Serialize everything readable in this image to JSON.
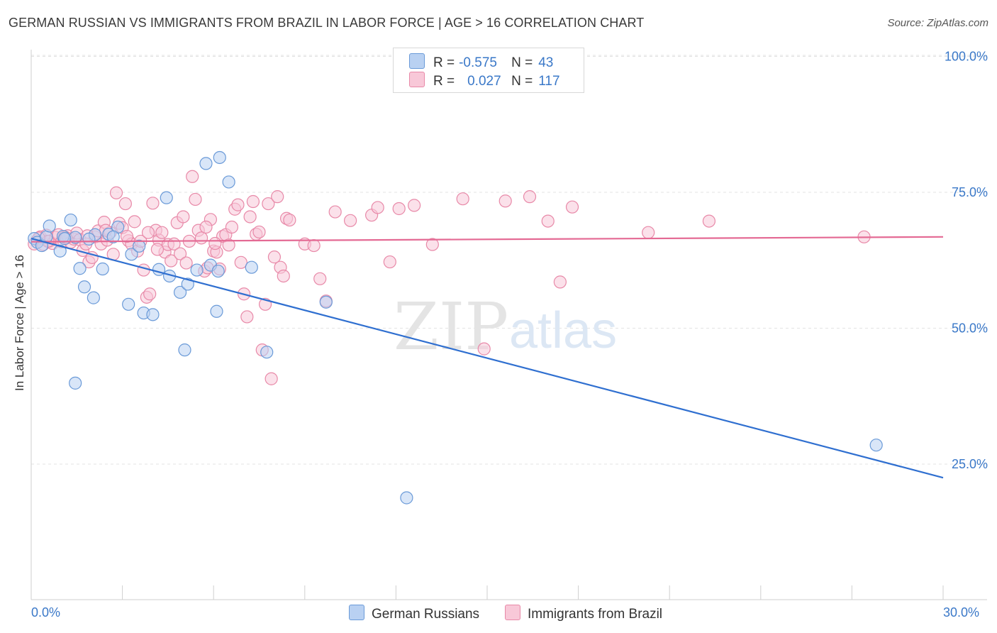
{
  "header": {
    "title": "GERMAN RUSSIAN VS IMMIGRANTS FROM BRAZIL IN LABOR FORCE | AGE > 16 CORRELATION CHART",
    "source_label": "Source: ZipAtlas.com"
  },
  "watermark": {
    "zip": "ZIP",
    "atlas": "atlas"
  },
  "legend_top": {
    "row1": {
      "r_label": "R =",
      "r_value": "-0.575",
      "n_label": "N =",
      "n_value": "43"
    },
    "row2": {
      "r_label": "R =",
      "r_value": "0.027",
      "n_label": "N =",
      "n_value": "117"
    }
  },
  "legend_bottom": {
    "series1": "German Russians",
    "series2": "Immigrants from Brazil"
  },
  "colors": {
    "blue_fill": "#b9d1f2",
    "blue_stroke": "#6a9ad8",
    "blue_line": "#2f6fd0",
    "pink_fill": "#f8c8d8",
    "pink_stroke": "#e889a8",
    "pink_line": "#e46a94",
    "axis_text": "#3a78c8",
    "grid": "#e3e3e3"
  },
  "chart_data": {
    "type": "scatter",
    "title": "GERMAN RUSSIAN VS IMMIGRANTS FROM BRAZIL IN LABOR FORCE | AGE > 16 CORRELATION CHART",
    "xlabel": "",
    "ylabel": "In Labor Force | Age > 16",
    "xlim": [
      0,
      30
    ],
    "ylim": [
      0,
      105
    ],
    "x_tick_labels": [
      "0.0%",
      "30.0%"
    ],
    "y_ticks": [
      25,
      50,
      75,
      100
    ],
    "y_tick_labels": [
      "25.0%",
      "50.0%",
      "75.0%",
      "100.0%"
    ],
    "grid": true,
    "legend_position": "top-center",
    "series": [
      {
        "name": "German Russians",
        "r": -0.575,
        "n": 43,
        "trend": {
          "x": [
            0,
            30
          ],
          "y": [
            66.5,
            22.5
          ]
        },
        "points": [
          [
            0.1,
            66.5
          ],
          [
            0.2,
            65.8
          ],
          [
            0.35,
            65.2
          ],
          [
            0.5,
            66.8
          ],
          [
            0.6,
            68.8
          ],
          [
            0.95,
            64.2
          ],
          [
            1.05,
            66.9
          ],
          [
            1.3,
            69.9
          ],
          [
            1.45,
            66.7
          ],
          [
            1.6,
            61.0
          ],
          [
            1.75,
            57.6
          ],
          [
            2.05,
            55.6
          ],
          [
            2.1,
            67.2
          ],
          [
            2.35,
            60.9
          ],
          [
            2.55,
            67.3
          ],
          [
            2.85,
            68.6
          ],
          [
            3.2,
            54.4
          ],
          [
            3.3,
            63.6
          ],
          [
            3.55,
            65.1
          ],
          [
            3.7,
            52.8
          ],
          [
            4.0,
            52.5
          ],
          [
            4.2,
            60.8
          ],
          [
            4.45,
            74.0
          ],
          [
            4.55,
            59.6
          ],
          [
            4.9,
            56.6
          ],
          [
            5.05,
            46.0
          ],
          [
            5.15,
            58.1
          ],
          [
            5.45,
            60.7
          ],
          [
            5.75,
            80.3
          ],
          [
            5.9,
            61.6
          ],
          [
            6.2,
            81.4
          ],
          [
            6.15,
            60.5
          ],
          [
            6.1,
            53.1
          ],
          [
            6.5,
            76.9
          ],
          [
            7.25,
            61.2
          ],
          [
            7.75,
            45.6
          ],
          [
            9.7,
            54.8
          ],
          [
            12.35,
            18.8
          ],
          [
            1.45,
            39.9
          ],
          [
            1.1,
            66.5
          ],
          [
            2.7,
            66.8
          ],
          [
            1.9,
            66.4
          ],
          [
            27.8,
            28.5
          ]
        ]
      },
      {
        "name": "Immigrants from Brazil",
        "r": 0.027,
        "n": 117,
        "trend": {
          "x": [
            0,
            30
          ],
          "y": [
            65.9,
            66.8
          ]
        },
        "points": [
          [
            0.1,
            65.5
          ],
          [
            0.2,
            66.2
          ],
          [
            0.3,
            66.8
          ],
          [
            0.4,
            65.4
          ],
          [
            0.5,
            67.1
          ],
          [
            0.6,
            66.0
          ],
          [
            0.7,
            65.6
          ],
          [
            0.8,
            66.7
          ],
          [
            0.9,
            67.2
          ],
          [
            1.0,
            65.9
          ],
          [
            1.1,
            66.8
          ],
          [
            1.2,
            67.0
          ],
          [
            1.3,
            65.8
          ],
          [
            1.4,
            66.4
          ],
          [
            1.5,
            67.5
          ],
          [
            1.6,
            66.3
          ],
          [
            1.7,
            64.3
          ],
          [
            1.8,
            65.5
          ],
          [
            1.9,
            62.2
          ],
          [
            2.0,
            63.0
          ],
          [
            2.1,
            66.8
          ],
          [
            2.2,
            67.9
          ],
          [
            2.3,
            65.5
          ],
          [
            2.4,
            69.5
          ],
          [
            2.5,
            66.2
          ],
          [
            2.6,
            67.6
          ],
          [
            2.7,
            63.6
          ],
          [
            2.8,
            74.9
          ],
          [
            2.9,
            69.3
          ],
          [
            3.0,
            68.5
          ],
          [
            3.1,
            72.9
          ],
          [
            3.2,
            66.1
          ],
          [
            3.3,
            65.5
          ],
          [
            3.4,
            69.6
          ],
          [
            3.5,
            64.2
          ],
          [
            3.6,
            66.0
          ],
          [
            3.7,
            60.7
          ],
          [
            3.8,
            55.7
          ],
          [
            3.9,
            56.3
          ],
          [
            4.0,
            73.0
          ],
          [
            4.1,
            68.0
          ],
          [
            4.2,
            66.2
          ],
          [
            4.3,
            67.6
          ],
          [
            4.4,
            64.0
          ],
          [
            4.5,
            65.4
          ],
          [
            4.6,
            62.4
          ],
          [
            4.7,
            65.5
          ],
          [
            4.8,
            69.4
          ],
          [
            4.9,
            63.7
          ],
          [
            5.0,
            70.5
          ],
          [
            5.1,
            62.0
          ],
          [
            5.2,
            66.0
          ],
          [
            5.3,
            77.9
          ],
          [
            5.4,
            73.7
          ],
          [
            5.5,
            68.0
          ],
          [
            5.6,
            66.6
          ],
          [
            5.7,
            60.5
          ],
          [
            5.8,
            61.1
          ],
          [
            5.9,
            70.0
          ],
          [
            6.0,
            64.2
          ],
          [
            6.1,
            64.0
          ],
          [
            6.2,
            60.9
          ],
          [
            6.3,
            66.9
          ],
          [
            6.4,
            67.2
          ],
          [
            6.5,
            65.3
          ],
          [
            6.6,
            68.6
          ],
          [
            6.7,
            71.9
          ],
          [
            6.8,
            72.7
          ],
          [
            6.9,
            62.1
          ],
          [
            7.0,
            56.3
          ],
          [
            7.1,
            52.1
          ],
          [
            7.2,
            70.5
          ],
          [
            7.3,
            73.3
          ],
          [
            7.4,
            67.3
          ],
          [
            7.5,
            67.7
          ],
          [
            7.6,
            46.0
          ],
          [
            7.7,
            54.4
          ],
          [
            7.8,
            72.9
          ],
          [
            7.9,
            40.7
          ],
          [
            8.0,
            63.1
          ],
          [
            8.1,
            74.2
          ],
          [
            8.2,
            61.2
          ],
          [
            8.3,
            59.6
          ],
          [
            8.4,
            70.2
          ],
          [
            8.5,
            69.9
          ],
          [
            9.0,
            65.5
          ],
          [
            9.3,
            65.2
          ],
          [
            9.5,
            59.1
          ],
          [
            9.7,
            55.0
          ],
          [
            10.0,
            71.4
          ],
          [
            10.5,
            69.8
          ],
          [
            11.2,
            70.8
          ],
          [
            11.4,
            72.2
          ],
          [
            11.8,
            62.2
          ],
          [
            12.1,
            72.0
          ],
          [
            12.6,
            72.6
          ],
          [
            13.2,
            65.4
          ],
          [
            14.2,
            73.8
          ],
          [
            14.9,
            46.2
          ],
          [
            15.6,
            73.4
          ],
          [
            16.4,
            74.2
          ],
          [
            17.0,
            69.7
          ],
          [
            17.4,
            58.5
          ],
          [
            17.8,
            72.3
          ],
          [
            20.3,
            67.6
          ],
          [
            22.3,
            69.7
          ],
          [
            27.4,
            66.8
          ],
          [
            1.15,
            66.6
          ],
          [
            2.45,
            68.0
          ],
          [
            3.85,
            67.6
          ],
          [
            5.75,
            68.6
          ],
          [
            0.55,
            66.0
          ],
          [
            0.25,
            66.6
          ],
          [
            1.85,
            67.0
          ],
          [
            3.15,
            66.9
          ],
          [
            4.15,
            64.5
          ],
          [
            6.05,
            65.6
          ]
        ]
      }
    ]
  }
}
